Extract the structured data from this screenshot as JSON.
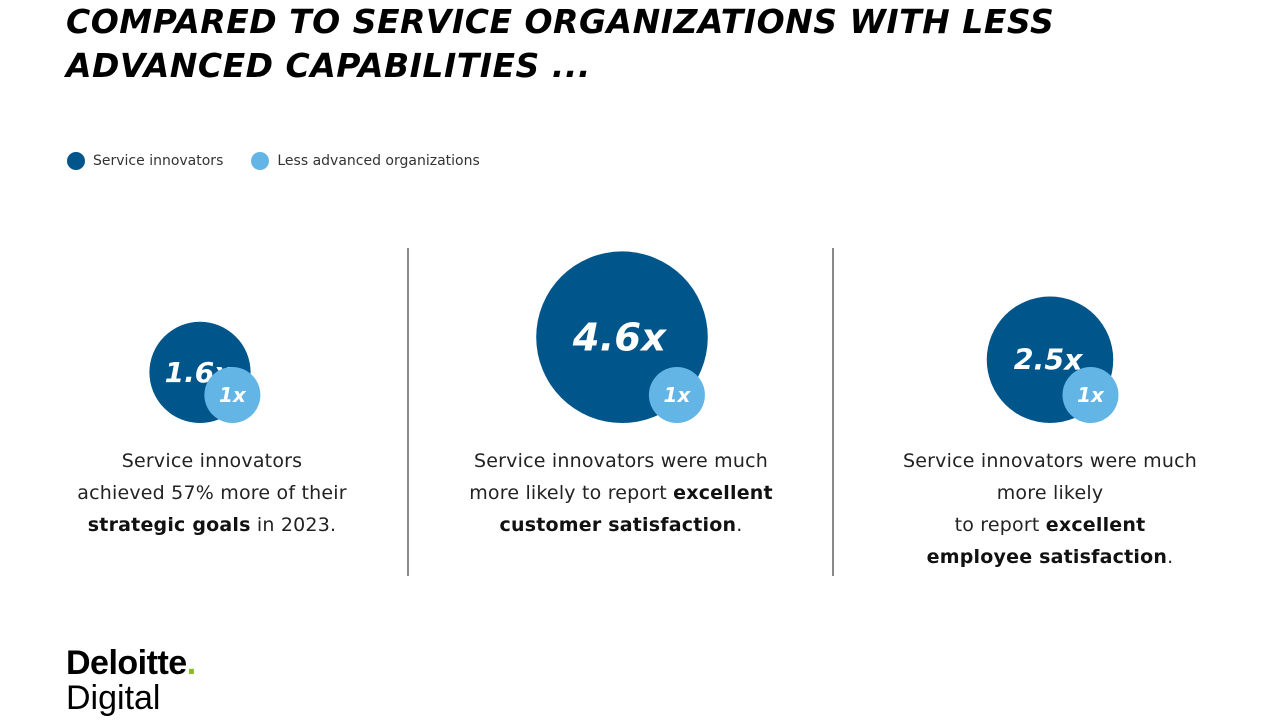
{
  "title": {
    "line1": "COMPARED TO SERVICE ORGANIZATIONS WITH LESS",
    "line2": "ADVANCED CAPABILITIES ..."
  },
  "chart_data": {
    "type": "bubble",
    "series": [
      {
        "name": "Service innovators",
        "color": "#00558a"
      },
      {
        "name": "Less advanced organizations",
        "color": "#62b5e5"
      }
    ],
    "panels": [
      {
        "innovators_value": 1.6,
        "innovators_label": "1.6x",
        "baseline_value": 1,
        "baseline_label": "1x",
        "text": {
          "l1": "Service innovators",
          "l2": "achieved 57% more of their",
          "l3_bold": "strategic goals",
          "l3_rest": " in 2023."
        }
      },
      {
        "innovators_value": 4.6,
        "innovators_label": "4.6x",
        "baseline_value": 1,
        "baseline_label": "1x",
        "text": {
          "l1": "Service innovators were much",
          "l2a": "more likely to report ",
          "l2_bold": "excellent",
          "l3_bold": "customer satisfaction",
          "l3_rest": "."
        }
      },
      {
        "innovators_value": 2.5,
        "innovators_label": "2.5x",
        "baseline_value": 1,
        "baseline_label": "1x",
        "text": {
          "l1": "Service innovators were much",
          "l2": "more likely",
          "l3a": "to report ",
          "l3_bold": "excellent",
          "l4_bold": "employee satisfaction",
          "l4_rest": "."
        }
      }
    ]
  },
  "logo": {
    "brand": "Deloitte",
    "dot": ".",
    "sub": "Digital"
  }
}
